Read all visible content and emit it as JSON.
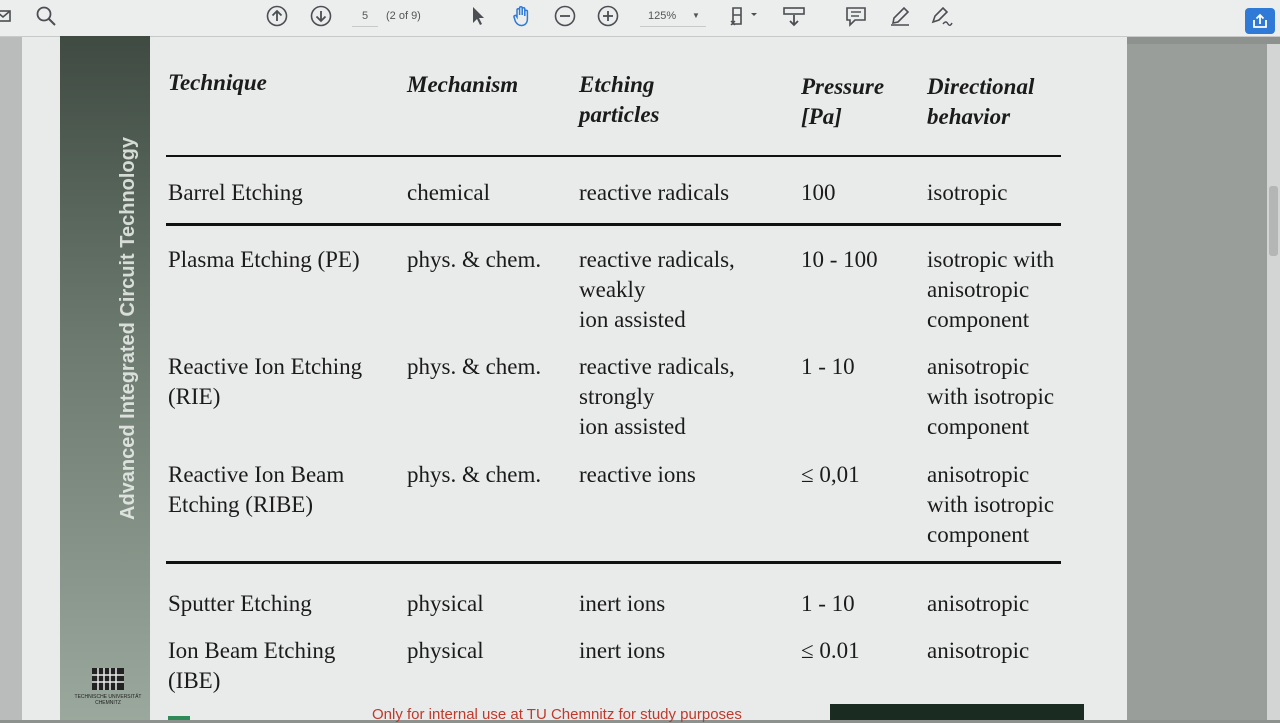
{
  "toolbar": {
    "page_current": "5",
    "page_of": "(2 of 9)",
    "zoom": "125%",
    "icons": [
      "mail-icon",
      "zoom-out-icon",
      "page-up-icon",
      "page-down-icon",
      "select-cursor-icon",
      "hand-tool-icon",
      "zoom-minus-icon",
      "zoom-plus-icon",
      "fit-page-icon",
      "scroll-mode-icon",
      "comment-icon",
      "pen-icon",
      "sign-icon",
      "share-icon"
    ]
  },
  "document": {
    "side_title": "Advanced Integrated Circuit Technology",
    "logo_text": "TECHNISCHE UNIVERSITÄT CHEMNITZ",
    "footer": "Only for internal use at TU Chemnitz for study purposes",
    "table": {
      "headers": [
        [
          "Technique"
        ],
        [
          "Mechanism"
        ],
        [
          "Etching",
          "particles"
        ],
        [
          "Pressure",
          "[Pa]"
        ],
        [
          "Directional",
          "behavior"
        ]
      ],
      "rows": [
        {
          "technique": [
            "Barrel Etching"
          ],
          "mechanism": "chemical",
          "particles": [
            "reactive radicals"
          ],
          "pressure": "100",
          "direction": [
            "isotropic"
          ]
        },
        {
          "technique": [
            "Plasma Etching (PE)"
          ],
          "mechanism": "phys. & chem.",
          "particles": [
            "reactive radicals,",
            "weakly",
            "ion assisted"
          ],
          "pressure": "10 - 100",
          "direction": [
            "isotropic with",
            "anisotropic",
            "component"
          ]
        },
        {
          "technique": [
            "Reactive Ion Etching",
            "(RIE)"
          ],
          "mechanism": "phys. & chem.",
          "particles": [
            "reactive radicals,",
            "strongly",
            "ion assisted"
          ],
          "pressure": "1 - 10",
          "direction": [
            "anisotropic",
            "with isotropic",
            "component"
          ]
        },
        {
          "technique": [
            "Reactive Ion Beam",
            "Etching (RIBE)"
          ],
          "mechanism": "phys. & chem.",
          "particles": [
            "reactive ions"
          ],
          "pressure": "≤ 0,01",
          "direction": [
            "anisotropic",
            "with isotropic",
            "component"
          ]
        },
        {
          "technique": [
            "Sputter Etching"
          ],
          "mechanism": "physical",
          "particles": [
            "inert ions"
          ],
          "pressure": "1 - 10",
          "direction": [
            "anisotropic"
          ]
        },
        {
          "technique": [
            "Ion Beam Etching",
            "(IBE)"
          ],
          "mechanism": "physical",
          "particles": [
            "inert ions"
          ],
          "pressure": "≤ 0.01",
          "direction": [
            "anisotropic"
          ]
        }
      ]
    }
  }
}
